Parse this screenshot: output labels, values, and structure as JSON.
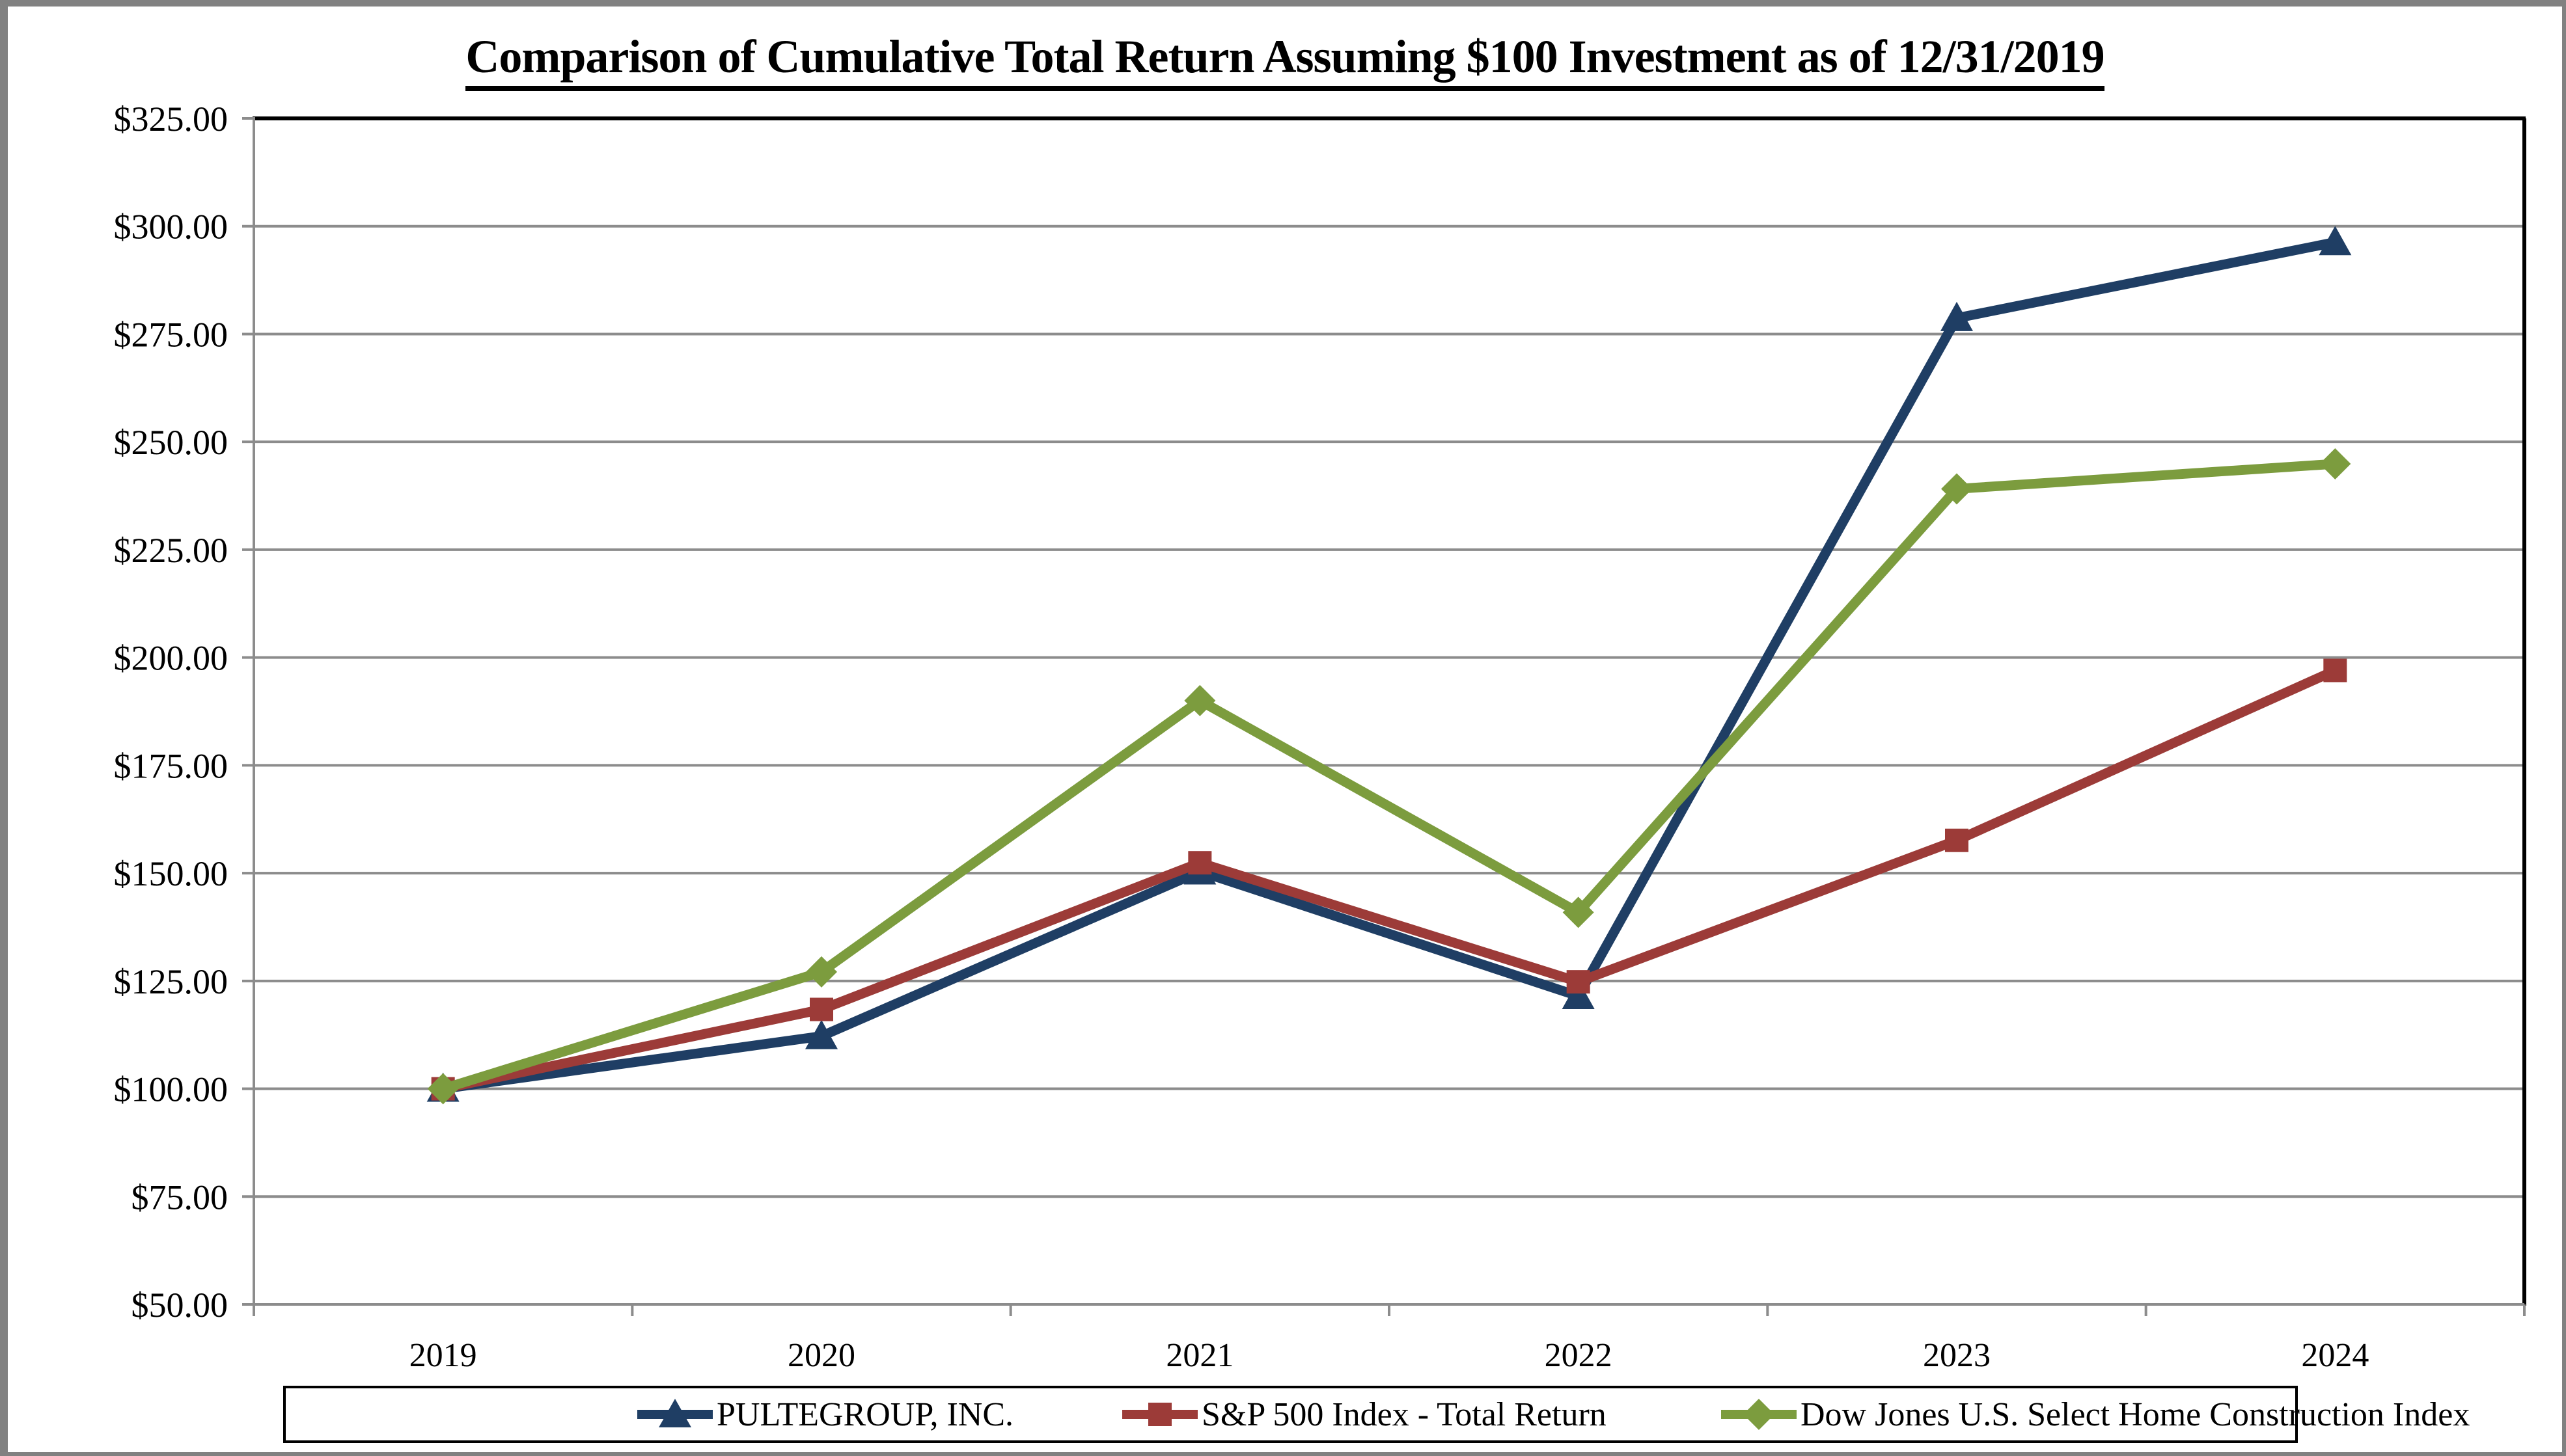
{
  "title": "Comparison of Cumulative Total Return Assuming $100 Investment as of 12/31/2019",
  "frame_color": "#818181",
  "chart_data": {
    "type": "line",
    "title": "Comparison of Cumulative Total Return Assuming $100 Investment as of 12/31/2019",
    "categories": [
      "2019",
      "2020",
      "2021",
      "2022",
      "2023",
      "2024"
    ],
    "series": [
      {
        "name": "PULTEGROUP, INC.",
        "marker": "triangle",
        "color": "#1F3E64",
        "values": [
          100.0,
          112.2,
          150.4,
          121.5,
          278.7,
          296.3
        ]
      },
      {
        "name": "S&P 500 Index - Total Return",
        "marker": "square",
        "color": "#9C3B38",
        "values": [
          100.0,
          118.4,
          152.4,
          124.8,
          157.6,
          197.0
        ]
      },
      {
        "name": "Dow Jones U.S. Select Home Construction Index",
        "marker": "diamond",
        "color": "#7C9C3E",
        "values": [
          100.0,
          127.1,
          190.0,
          140.9,
          239.1,
          244.9
        ]
      }
    ],
    "y_axis": {
      "min": 50,
      "max": 325,
      "step": 25,
      "tick_labels": [
        "$50.00",
        "$75.00",
        "$100.00",
        "$125.00",
        "$150.00",
        "$175.00",
        "$200.00",
        "$225.00",
        "$250.00",
        "$275.00",
        "$300.00",
        "$325.00"
      ]
    },
    "xlabel": "",
    "ylabel": "",
    "grid": true,
    "grid_color": "#8C8C8C",
    "axis_color": "#8C8C8C",
    "plot_border_color": "#000000",
    "legend_position": "bottom"
  }
}
